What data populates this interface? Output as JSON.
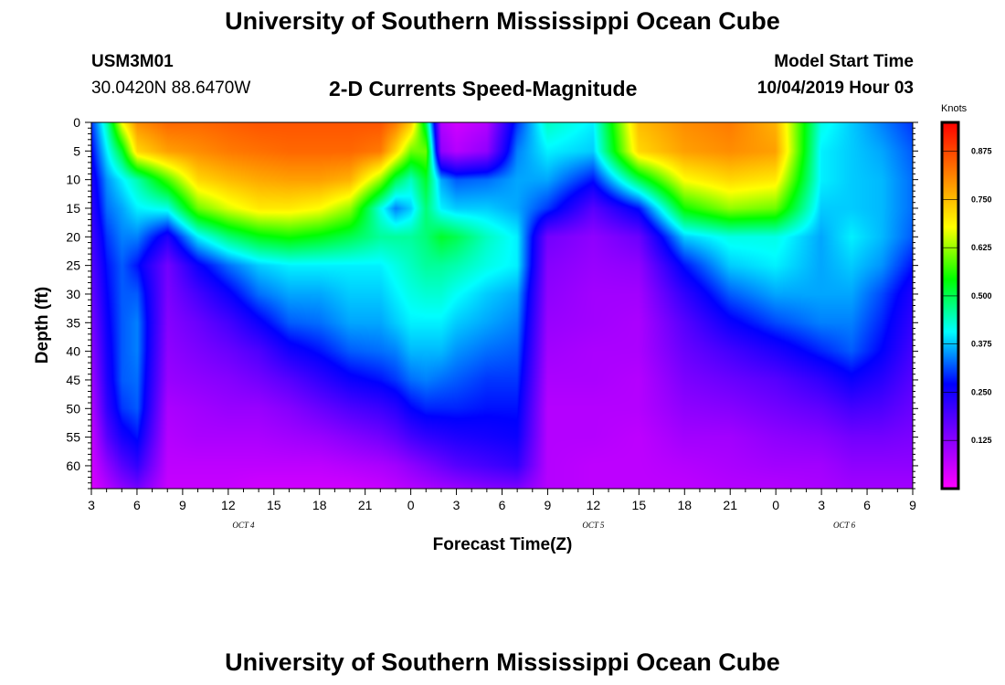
{
  "page": {
    "title_top": "University of Southern Mississippi Ocean Cube",
    "title_bottom": "University of Southern Mississippi Ocean Cube",
    "station_id": "USM3M01",
    "coordinates": "30.0420N 88.6470W",
    "subtitle": "2-D Currents Speed-Magnitude",
    "model_start_label": "Model Start Time",
    "model_start_value": "10/04/2019 Hour 03"
  },
  "colors": {
    "scale": [
      "#ff00ff",
      "#8000ff",
      "#0000ff",
      "#00ffff",
      "#00ff00",
      "#ffff00",
      "#ff8000",
      "#ff0000"
    ]
  },
  "chart_data": {
    "type": "heatmap",
    "title": "2-D Currents Speed-Magnitude",
    "xlabel": "Forecast Time(Z)",
    "ylabel": "Depth (ft)",
    "colorbar_label": "Knots",
    "x_tick_labels": [
      "3",
      "6",
      "9",
      "12",
      "15",
      "18",
      "21",
      "0",
      "3",
      "6",
      "9",
      "12",
      "15",
      "18",
      "21",
      "0",
      "3",
      "6",
      "9"
    ],
    "x_range_hours": [
      0,
      54
    ],
    "y_tick_labels": [
      "0",
      "5",
      "10",
      "15",
      "20",
      "25",
      "30",
      "35",
      "40",
      "45",
      "50",
      "55",
      "60"
    ],
    "y_range": [
      0,
      64
    ],
    "date_labels": [
      {
        "label": "OCT 4",
        "hour": 10
      },
      {
        "label": "OCT 5",
        "hour": 33
      },
      {
        "label": "OCT 6",
        "hour": 49.5
      }
    ],
    "colorbar_ticks": [
      "0.875",
      "0.750",
      "0.625",
      "0.500",
      "0.375",
      "0.250",
      "0.125"
    ],
    "colorbar_range": [
      0.0,
      0.95
    ],
    "grid": false,
    "value_grid": {
      "times": [
        0,
        1,
        2,
        3,
        5,
        7,
        9,
        11,
        13,
        15,
        17,
        19,
        20,
        21,
        22,
        23,
        24,
        26,
        28,
        30,
        33,
        36,
        39,
        42,
        45,
        48,
        50,
        52,
        54
      ],
      "depths": [
        0,
        5,
        10,
        15,
        20,
        25,
        30,
        35,
        40,
        45,
        50,
        55,
        60,
        64
      ],
      "values": [
        [
          0.3,
          0.27,
          0.24,
          0.22,
          0.2,
          0.18,
          0.16,
          0.14,
          0.12,
          0.1,
          0.08,
          0.06,
          0.05,
          0.04
        ],
        [
          0.45,
          0.4,
          0.35,
          0.33,
          0.3,
          0.28,
          0.27,
          0.26,
          0.25,
          0.24,
          0.22,
          0.18,
          0.12,
          0.08
        ],
        [
          0.68,
          0.52,
          0.4,
          0.36,
          0.34,
          0.32,
          0.32,
          0.32,
          0.32,
          0.32,
          0.3,
          0.25,
          0.18,
          0.12
        ],
        [
          0.8,
          0.72,
          0.45,
          0.4,
          0.34,
          0.28,
          0.32,
          0.34,
          0.34,
          0.33,
          0.32,
          0.28,
          0.22,
          0.15
        ],
        [
          0.84,
          0.78,
          0.58,
          0.42,
          0.24,
          0.15,
          0.14,
          0.13,
          0.12,
          0.11,
          0.09,
          0.08,
          0.07,
          0.06
        ],
        [
          0.84,
          0.8,
          0.72,
          0.6,
          0.4,
          0.26,
          0.2,
          0.16,
          0.14,
          0.12,
          0.1,
          0.09,
          0.07,
          0.06
        ],
        [
          0.85,
          0.82,
          0.75,
          0.66,
          0.48,
          0.33,
          0.26,
          0.2,
          0.16,
          0.13,
          0.11,
          0.09,
          0.07,
          0.06
        ],
        [
          0.86,
          0.83,
          0.77,
          0.7,
          0.53,
          0.38,
          0.33,
          0.26,
          0.19,
          0.15,
          0.11,
          0.09,
          0.07,
          0.05
        ],
        [
          0.86,
          0.84,
          0.78,
          0.7,
          0.55,
          0.4,
          0.36,
          0.32,
          0.25,
          0.18,
          0.13,
          0.1,
          0.07,
          0.05
        ],
        [
          0.86,
          0.84,
          0.78,
          0.68,
          0.53,
          0.4,
          0.36,
          0.33,
          0.28,
          0.22,
          0.16,
          0.11,
          0.07,
          0.05
        ],
        [
          0.86,
          0.84,
          0.76,
          0.62,
          0.5,
          0.4,
          0.38,
          0.36,
          0.32,
          0.26,
          0.19,
          0.13,
          0.08,
          0.05
        ],
        [
          0.86,
          0.82,
          0.62,
          0.42,
          0.46,
          0.4,
          0.38,
          0.36,
          0.33,
          0.28,
          0.21,
          0.15,
          0.09,
          0.06
        ],
        [
          0.82,
          0.72,
          0.5,
          0.34,
          0.46,
          0.42,
          0.4,
          0.38,
          0.34,
          0.3,
          0.23,
          0.17,
          0.1,
          0.07
        ],
        [
          0.74,
          0.6,
          0.44,
          0.38,
          0.46,
          0.44,
          0.42,
          0.4,
          0.37,
          0.33,
          0.27,
          0.2,
          0.12,
          0.08
        ],
        [
          0.5,
          0.6,
          0.52,
          0.48,
          0.48,
          0.46,
          0.43,
          0.4,
          0.37,
          0.34,
          0.29,
          0.22,
          0.14,
          0.09
        ],
        [
          0.08,
          0.12,
          0.36,
          0.4,
          0.52,
          0.46,
          0.43,
          0.4,
          0.37,
          0.33,
          0.29,
          0.23,
          0.16,
          0.1
        ],
        [
          0.05,
          0.08,
          0.32,
          0.38,
          0.5,
          0.45,
          0.41,
          0.38,
          0.35,
          0.32,
          0.29,
          0.24,
          0.18,
          0.11
        ],
        [
          0.08,
          0.12,
          0.33,
          0.38,
          0.44,
          0.42,
          0.38,
          0.36,
          0.33,
          0.3,
          0.28,
          0.25,
          0.2,
          0.13
        ],
        [
          0.3,
          0.34,
          0.36,
          0.36,
          0.4,
          0.4,
          0.36,
          0.34,
          0.32,
          0.3,
          0.28,
          0.26,
          0.22,
          0.14
        ],
        [
          0.44,
          0.4,
          0.36,
          0.3,
          0.15,
          0.13,
          0.12,
          0.11,
          0.1,
          0.09,
          0.08,
          0.08,
          0.08,
          0.08
        ],
        [
          0.4,
          0.38,
          0.28,
          0.18,
          0.12,
          0.11,
          0.1,
          0.1,
          0.09,
          0.09,
          0.08,
          0.08,
          0.07,
          0.07
        ],
        [
          0.75,
          0.72,
          0.5,
          0.28,
          0.16,
          0.12,
          0.1,
          0.09,
          0.09,
          0.08,
          0.08,
          0.07,
          0.07,
          0.07
        ],
        [
          0.8,
          0.78,
          0.68,
          0.55,
          0.38,
          0.28,
          0.22,
          0.18,
          0.16,
          0.14,
          0.12,
          0.1,
          0.08,
          0.07
        ],
        [
          0.82,
          0.8,
          0.72,
          0.62,
          0.42,
          0.38,
          0.32,
          0.26,
          0.2,
          0.16,
          0.13,
          0.1,
          0.09,
          0.08
        ],
        [
          0.76,
          0.78,
          0.7,
          0.6,
          0.42,
          0.4,
          0.36,
          0.31,
          0.24,
          0.18,
          0.15,
          0.12,
          0.1,
          0.08
        ],
        [
          0.42,
          0.4,
          0.4,
          0.38,
          0.36,
          0.36,
          0.36,
          0.34,
          0.29,
          0.22,
          0.17,
          0.13,
          0.1,
          0.09
        ],
        [
          0.38,
          0.38,
          0.38,
          0.38,
          0.4,
          0.38,
          0.36,
          0.34,
          0.32,
          0.26,
          0.2,
          0.15,
          0.12,
          0.1
        ],
        [
          0.34,
          0.36,
          0.37,
          0.37,
          0.37,
          0.35,
          0.31,
          0.29,
          0.27,
          0.23,
          0.19,
          0.15,
          0.12,
          0.1
        ],
        [
          0.3,
          0.32,
          0.33,
          0.33,
          0.32,
          0.28,
          0.24,
          0.22,
          0.2,
          0.18,
          0.16,
          0.14,
          0.12,
          0.1
        ]
      ]
    }
  }
}
